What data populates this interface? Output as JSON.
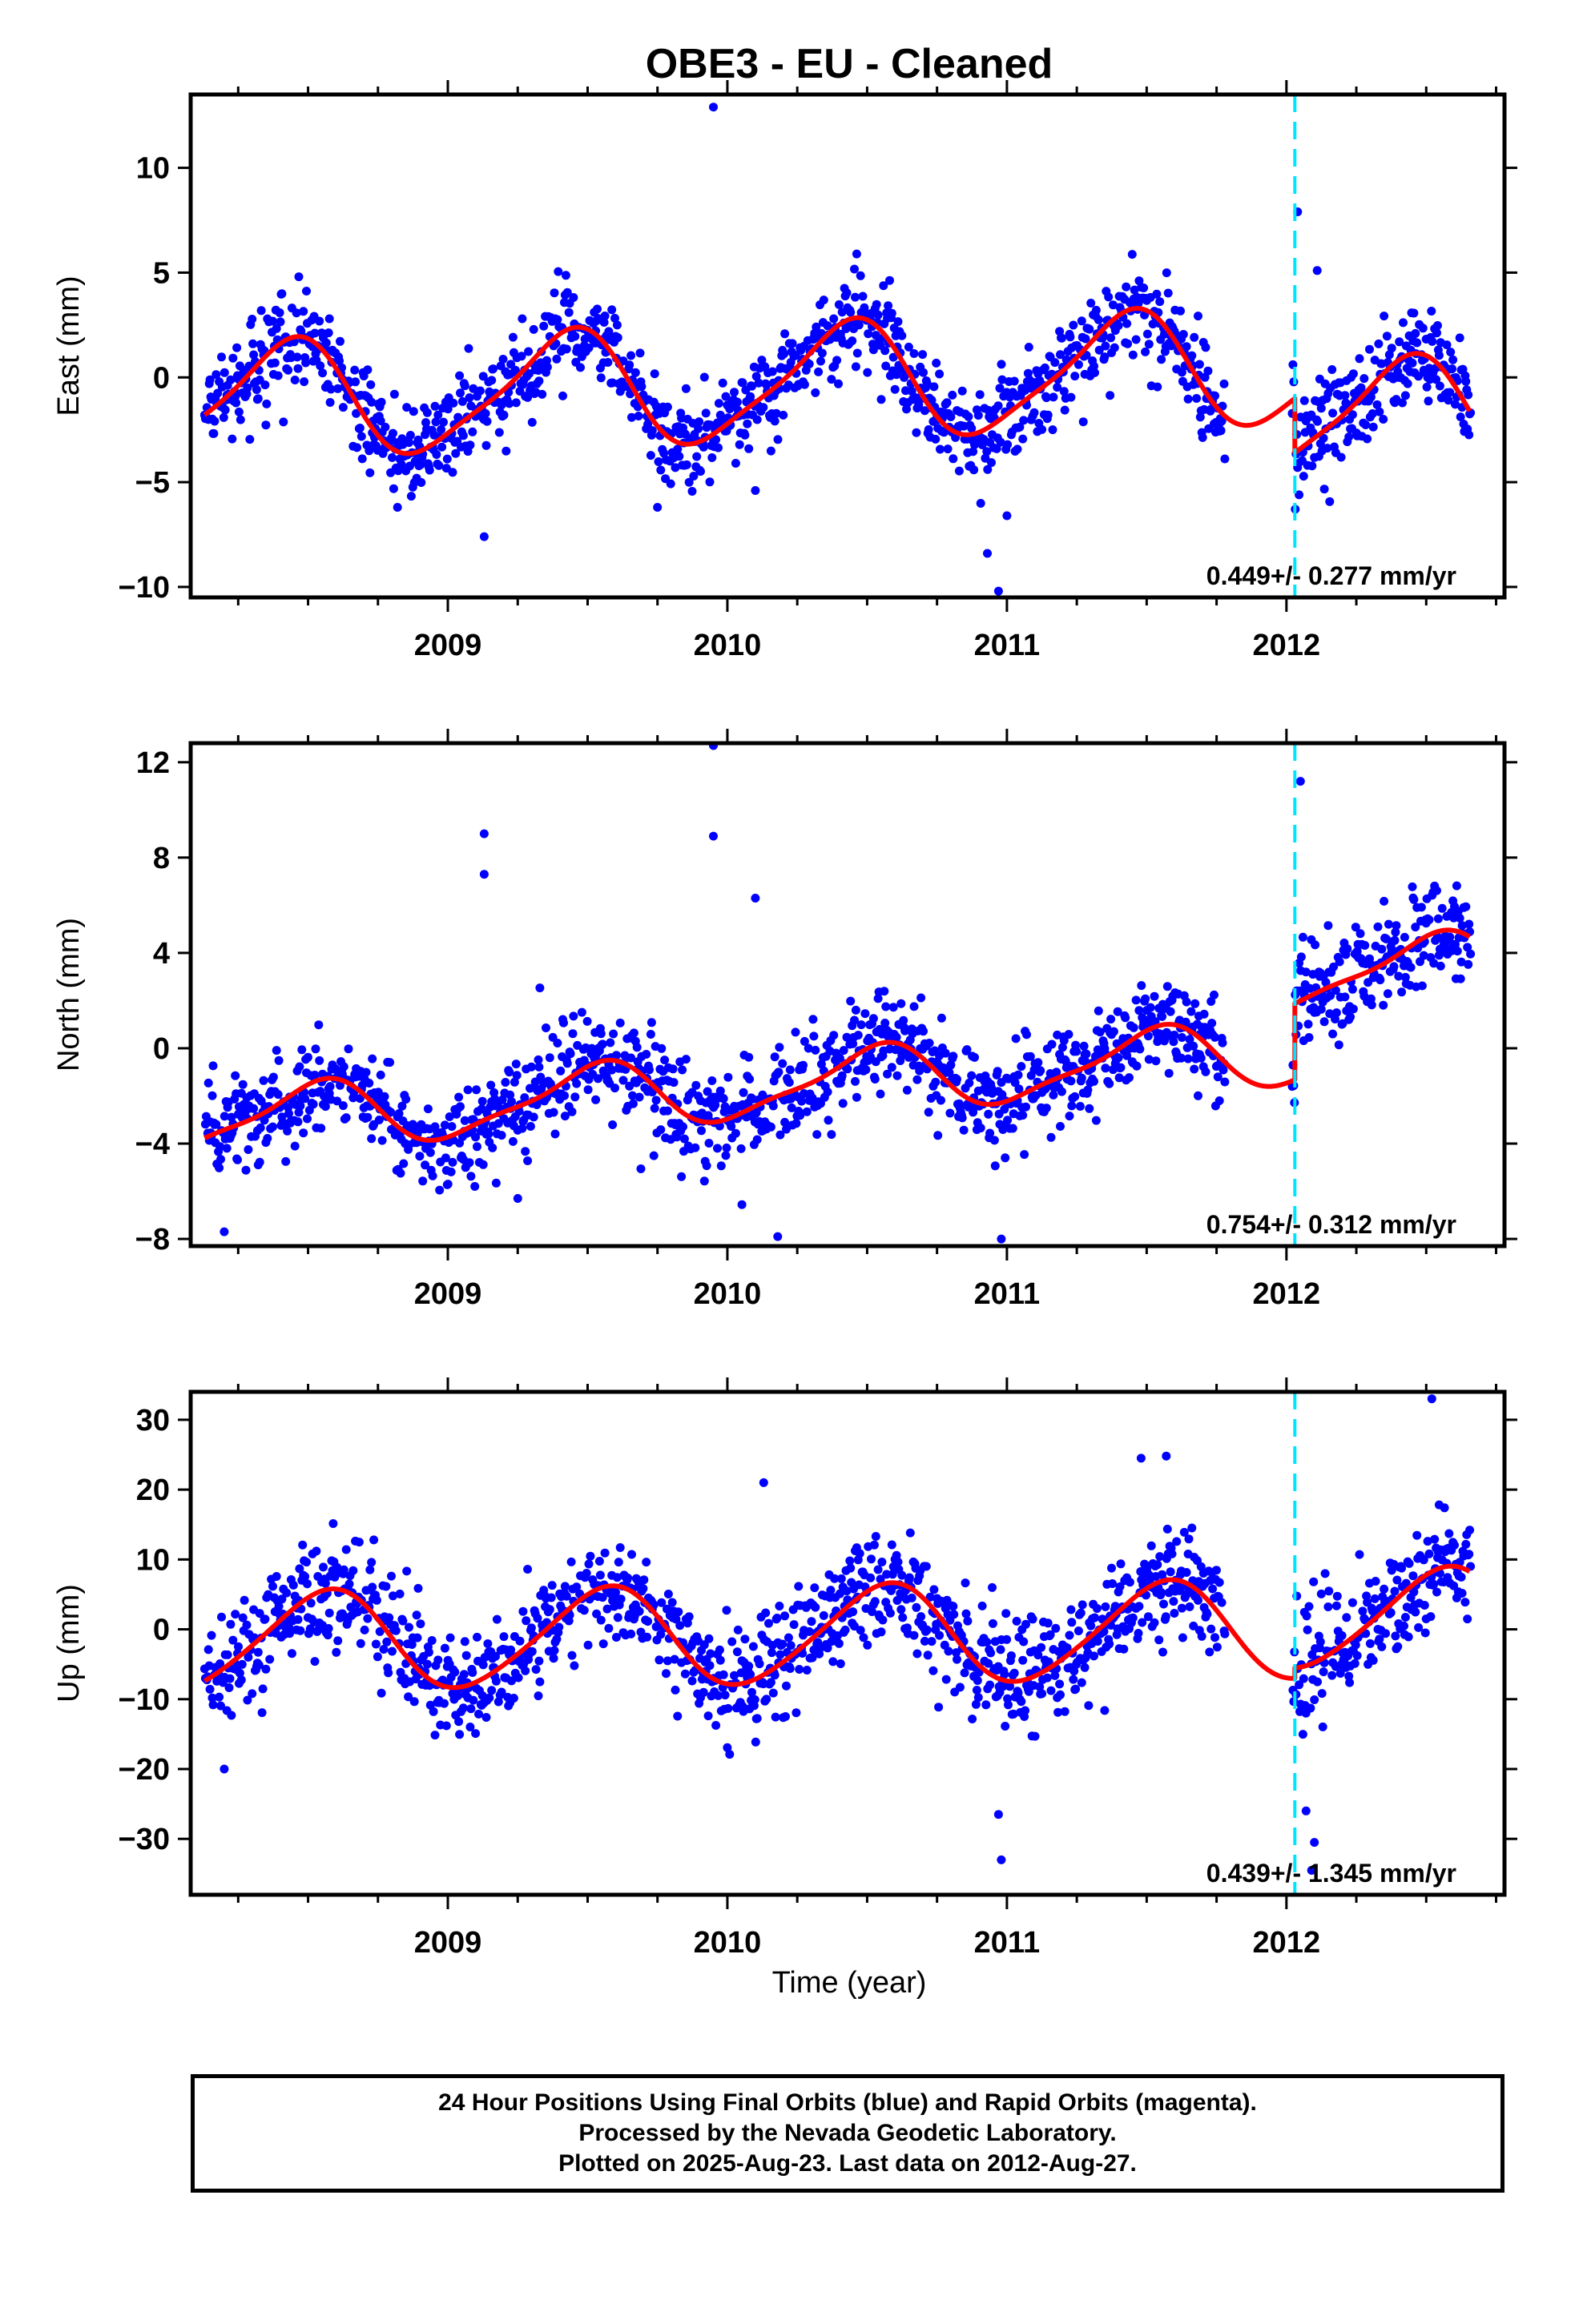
{
  "figure_title": "OBE3  - EU - Cleaned",
  "x_axis_label": "Time (year)",
  "footer_lines": [
    "24 Hour Positions Using Final Orbits (blue) and Rapid Orbits (magenta).",
    "Processed by the Nevada Geodetic Laboratory.",
    "Plotted on 2025-Aug-23. Last data on 2012-Aug-27."
  ],
  "colors": {
    "points": "#0000ff",
    "model": "#ff0000",
    "event_line": "#00e5ff",
    "frame": "#000000"
  },
  "chart_data": [
    {
      "type": "scatter",
      "component": "east",
      "ylabel": "East (mm)",
      "xlim": [
        2008.08,
        2012.78
      ],
      "ylim": [
        -10.5,
        13.5
      ],
      "yticks": [
        -10,
        -5,
        0,
        5,
        10
      ],
      "xticks": [
        2009,
        2010,
        2011,
        2012
      ],
      "event_line_x": 2012.03,
      "rate_text": "0.449+/- 0.277 mm/yr",
      "model": {
        "rate": 0.449,
        "annual_amp": 2.7,
        "annual_phase_year": 2008.42,
        "semi_amp": 0.55,
        "offset_at_event": -2.6,
        "base": -0.2,
        "noise": 1.1
      },
      "data_gap": [
        2011.78,
        2012.02
      ],
      "data_range": [
        2008.13,
        2012.66
      ],
      "outliers": [
        [
          2009.95,
          12.9
        ],
        [
          2010.97,
          -10.2
        ],
        [
          2010.93,
          -8.4
        ],
        [
          2012.04,
          7.9
        ],
        [
          2009.13,
          -7.6
        ],
        [
          2008.82,
          -6.2
        ],
        [
          2009.75,
          -6.2
        ],
        [
          2010.1,
          -5.4
        ],
        [
          2011.0,
          -6.6
        ],
        [
          2012.11,
          5.1
        ]
      ]
    },
    {
      "type": "scatter",
      "component": "north",
      "ylabel": "North (mm)",
      "xlim": [
        2008.08,
        2012.78
      ],
      "ylim": [
        -8.3,
        12.8
      ],
      "yticks": [
        -8,
        -4,
        0,
        4,
        8,
        12
      ],
      "xticks": [
        2009,
        2010,
        2011,
        2012
      ],
      "event_line_x": 2012.03,
      "rate_text": "0.754+/- 0.312 mm/yr",
      "model": {
        "rate": 0.754,
        "annual_amp": 1.3,
        "annual_phase_year": 2008.52,
        "semi_amp": 0.35,
        "offset_at_event": 3.2,
        "base": -1.4,
        "noise": 1.0
      },
      "data_gap": [
        2011.78,
        2012.02
      ],
      "data_range": [
        2008.13,
        2012.66
      ],
      "outliers": [
        [
          2009.95,
          12.7
        ],
        [
          2009.13,
          9.0
        ],
        [
          2009.95,
          8.9
        ],
        [
          2010.1,
          6.3
        ],
        [
          2008.2,
          -7.7
        ],
        [
          2010.98,
          -8.0
        ],
        [
          2010.18,
          -7.9
        ],
        [
          2009.25,
          -6.3
        ],
        [
          2012.05,
          11.2
        ],
        [
          2009.13,
          7.3
        ]
      ]
    },
    {
      "type": "scatter",
      "component": "up",
      "ylabel": "Up (mm)",
      "xlim": [
        2008.08,
        2012.78
      ],
      "ylim": [
        -38,
        34
      ],
      "yticks": [
        -30,
        -20,
        -10,
        0,
        10,
        20,
        30
      ],
      "xticks": [
        2009,
        2010,
        2011,
        2012
      ],
      "event_line_x": 2012.03,
      "rate_text": "0.439+/- 1.345 mm/yr",
      "model": {
        "rate": 0.439,
        "annual_amp": 7.0,
        "annual_phase_year": 2008.56,
        "semi_amp": 0.8,
        "offset_at_event": 1.5,
        "base": -0.8,
        "noise": 4.0
      },
      "data_gap": [
        2011.78,
        2012.02
      ],
      "data_range": [
        2008.13,
        2012.66
      ],
      "outliers": [
        [
          2012.52,
          33.0
        ],
        [
          2010.98,
          -33.0
        ],
        [
          2010.97,
          -26.5
        ],
        [
          2012.09,
          -34.5
        ],
        [
          2012.1,
          -30.5
        ],
        [
          2012.07,
          -26.0
        ],
        [
          2011.48,
          24.5
        ],
        [
          2011.57,
          24.8
        ],
        [
          2010.13,
          21.0
        ],
        [
          2008.2,
          -20.0
        ]
      ]
    }
  ]
}
